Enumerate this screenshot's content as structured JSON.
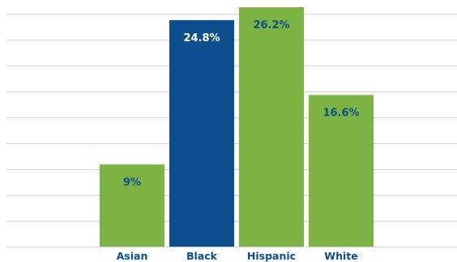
{
  "chart_data": {
    "type": "bar",
    "categories": [
      "Asian",
      "Black",
      "Hispanic",
      "White"
    ],
    "values": [
      9,
      24.8,
      26.2,
      16.6
    ],
    "labels": [
      "9%",
      "24.8%",
      "26.2%",
      "16.6%"
    ],
    "ylim": [
      0,
      27
    ],
    "grid": true,
    "colors": {
      "bars": [
        "#7cb342",
        "#0b4f8e",
        "#7cb342",
        "#7cb342"
      ],
      "labels": [
        "#0b4f8e",
        "#ffffff",
        "#0b4f8e",
        "#0b4f8e"
      ],
      "grid": "#d4d4d4",
      "category_text": "#0b4f8e"
    }
  }
}
